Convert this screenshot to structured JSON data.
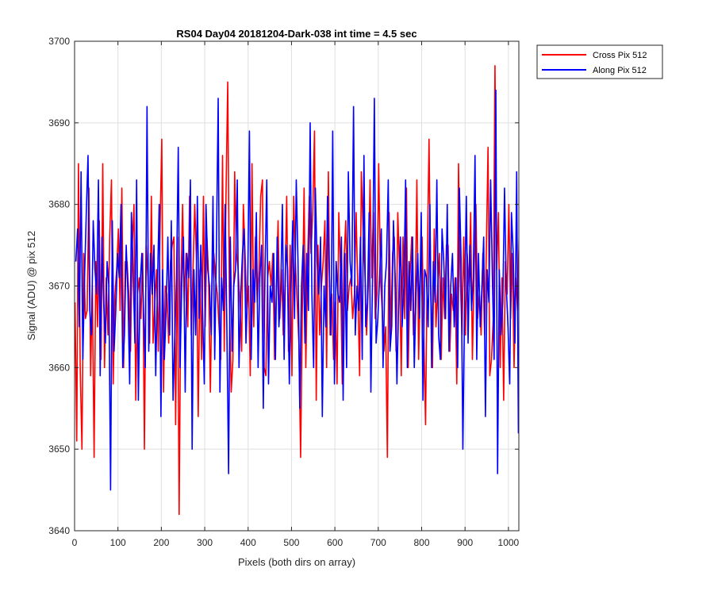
{
  "chart_data": {
    "type": "line",
    "title": "RS04 Day04 20181204-Dark-038 int time = 4.5 sec",
    "xlabel": "Pixels (both dirs on array)",
    "ylabel": "Signal (ADU) @ pix 512",
    "xlim": [
      0,
      1024
    ],
    "ylim": [
      3640,
      3700
    ],
    "xticks": [
      0,
      100,
      200,
      300,
      400,
      500,
      600,
      700,
      800,
      900,
      1000
    ],
    "yticks": [
      3640,
      3650,
      3660,
      3670,
      3680,
      3690,
      3700
    ],
    "xtick_labels": [
      "0",
      "100",
      "200",
      "300",
      "400",
      "500",
      "600",
      "700",
      "800",
      "900",
      "1000"
    ],
    "ytick_labels": [
      "3640",
      "3650",
      "3660",
      "3670",
      "3680",
      "3690",
      "3700"
    ],
    "grid": true,
    "legend_position": "outside-top-right",
    "series": [
      {
        "name": "Cross Pix 512",
        "color": "#ff0000",
        "x_start": 1,
        "x_step": 4,
        "values": [
          3668,
          3651,
          3685,
          3660,
          3650,
          3674,
          3666,
          3667,
          3682,
          3659,
          3670,
          3649,
          3673,
          3665,
          3678,
          3661,
          3685,
          3660,
          3671,
          3664,
          3676,
          3683,
          3658,
          3669,
          3672,
          3677,
          3667,
          3682,
          3660,
          3673,
          3673,
          3669,
          3662,
          3675,
          3680,
          3656,
          3669,
          3671,
          3666,
          3674,
          3650,
          3675,
          3671,
          3663,
          3681,
          3663,
          3668,
          3672,
          3662,
          3677,
          3688,
          3657,
          3670,
          3669,
          3663,
          3673,
          3675,
          3676,
          3653,
          3676,
          3642,
          3670,
          3680,
          3668,
          3674,
          3665,
          3681,
          3664,
          3672,
          3680,
          3673,
          3654,
          3672,
          3661,
          3681,
          3665,
          3676,
          3671,
          3657,
          3671,
          3674,
          3671,
          3669,
          3665,
          3661,
          3686,
          3662,
          3681,
          3695,
          3668,
          3657,
          3661,
          3684,
          3674,
          3672,
          3668,
          3662,
          3680,
          3674,
          3667,
          3670,
          3659,
          3685,
          3665,
          3676,
          3668,
          3672,
          3681,
          3683,
          3660,
          3659,
          3671,
          3673,
          3670,
          3674,
          3661,
          3669,
          3678,
          3666,
          3672,
          3664,
          3670,
          3681,
          3662,
          3675,
          3659,
          3681,
          3673,
          3668,
          3663,
          3649,
          3667,
          3682,
          3660,
          3673,
          3681,
          3674,
          3679,
          3689,
          3656,
          3675,
          3664,
          3670,
          3673,
          3678,
          3660,
          3684,
          3664,
          3669,
          3661,
          3668,
          3658,
          3679,
          3672,
          3658,
          3673,
          3678,
          3667,
          3670,
          3671,
          3666,
          3669,
          3679,
          3669,
          3659,
          3684,
          3677,
          3672,
          3664,
          3670,
          3683,
          3671,
          3679,
          3666,
          3669,
          3685,
          3671,
          3667,
          3662,
          3665,
          3649,
          3679,
          3664,
          3674,
          3676,
          3662,
          3679,
          3672,
          3659,
          3676,
          3666,
          3682,
          3660,
          3671,
          3676,
          3664,
          3667,
          3683,
          3661,
          3671,
          3676,
          3664,
          3653,
          3673,
          3688,
          3669,
          3660,
          3677,
          3665,
          3670,
          3674,
          3661,
          3671,
          3666,
          3675,
          3675,
          3662,
          3669,
          3667,
          3671,
          3658,
          3685,
          3671,
          3664,
          3676,
          3664,
          3674,
          3670,
          3679,
          3661,
          3672,
          3680,
          3666,
          3669,
          3664,
          3674,
          3664,
          3674,
          3687,
          3659,
          3661,
          3666,
          3697,
          3672,
          3679,
          3660,
          3671,
          3656,
          3673,
          3669,
          3680,
          3666,
          3674,
          3660,
          3671,
          3667,
          3677,
          3661
        ]
      },
      {
        "name": "Along Pix 512",
        "color": "#0000ff",
        "x_start": 3,
        "x_step": 4,
        "values": [
          3673,
          3677,
          3665,
          3684,
          3661,
          3671,
          3679,
          3686,
          3667,
          3664,
          3678,
          3672,
          3669,
          3683,
          3659,
          3676,
          3668,
          3663,
          3673,
          3670,
          3645,
          3678,
          3662,
          3667,
          3674,
          3671,
          3680,
          3660,
          3664,
          3675,
          3669,
          3658,
          3679,
          3672,
          3663,
          3683,
          3656,
          3670,
          3674,
          3667,
          3660,
          3692,
          3662,
          3674,
          3669,
          3675,
          3659,
          3670,
          3680,
          3654,
          3672,
          3661,
          3667,
          3676,
          3664,
          3678,
          3656,
          3664,
          3671,
          3687,
          3660,
          3670,
          3676,
          3657,
          3674,
          3671,
          3683,
          3650,
          3672,
          3664,
          3681,
          3666,
          3675,
          3667,
          3658,
          3680,
          3672,
          3670,
          3664,
          3681,
          3661,
          3675,
          3693,
          3657,
          3671,
          3667,
          3680,
          3665,
          3647,
          3676,
          3662,
          3670,
          3672,
          3683,
          3660,
          3669,
          3674,
          3677,
          3663,
          3670,
          3689,
          3661,
          3672,
          3668,
          3679,
          3660,
          3671,
          3675,
          3655,
          3672,
          3683,
          3658,
          3670,
          3668,
          3674,
          3661,
          3676,
          3665,
          3669,
          3680,
          3661,
          3675,
          3672,
          3658,
          3670,
          3678,
          3666,
          3683,
          3673,
          3655,
          3670,
          3675,
          3663,
          3674,
          3667,
          3690,
          3669,
          3660,
          3682,
          3673,
          3669,
          3676,
          3654,
          3670,
          3665,
          3681,
          3672,
          3664,
          3689,
          3658,
          3673,
          3669,
          3668,
          3676,
          3656,
          3674,
          3660,
          3684,
          3673,
          3670,
          3692,
          3664,
          3670,
          3667,
          3676,
          3661,
          3686,
          3665,
          3668,
          3679,
          3657,
          3672,
          3693,
          3663,
          3666,
          3671,
          3677,
          3660,
          3670,
          3673,
          3683,
          3662,
          3665,
          3678,
          3671,
          3658,
          3668,
          3676,
          3665,
          3670,
          3683,
          3660,
          3673,
          3667,
          3676,
          3660,
          3669,
          3674,
          3666,
          3679,
          3656,
          3672,
          3671,
          3665,
          3680,
          3660,
          3673,
          3668,
          3683,
          3664,
          3661,
          3677,
          3673,
          3666,
          3680,
          3662,
          3670,
          3674,
          3665,
          3671,
          3660,
          3682,
          3673,
          3650,
          3668,
          3681,
          3663,
          3675,
          3667,
          3671,
          3686,
          3661,
          3674,
          3665,
          3670,
          3676,
          3654,
          3672,
          3668,
          3683,
          3671,
          3661,
          3694,
          3647,
          3672,
          3664,
          3668,
          3682,
          3670,
          3665,
          3658,
          3679,
          3674,
          3663,
          3684,
          3652,
          3674,
          3678,
          3686,
          3665
        ]
      }
    ]
  }
}
